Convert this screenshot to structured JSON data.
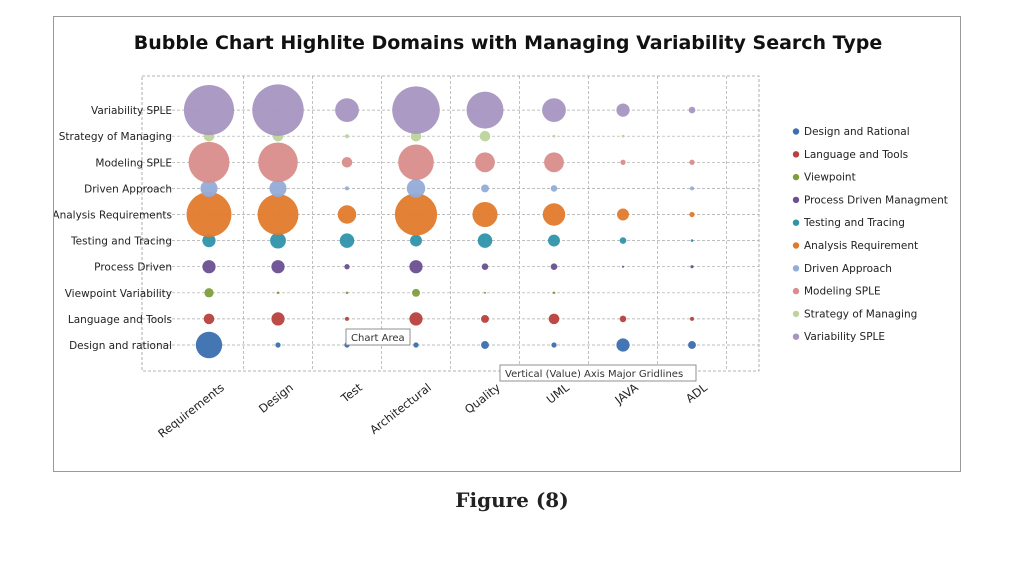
{
  "chart_data": {
    "type": "bubble",
    "title": "Bubble Chart Highlite Domains with Managing Variability Search Type",
    "categories": [
      "Requirements",
      "Design",
      "Test",
      "Architectural",
      "Quality",
      "UML",
      "JAVA",
      "ADL"
    ],
    "y_categories": [
      "Design and rational",
      "Language and Tools",
      "Viewpoint Variability",
      "Process Driven",
      "Testing and Tracing",
      "Analysis Requirements",
      "Driven Approach",
      "Modeling SPLE",
      "Strategy of Managing",
      "Variability SPLE"
    ],
    "grid": true,
    "legend_position": "right",
    "series": [
      {
        "name": "Design and Rational",
        "color": "#3b6fb0",
        "sizes": [
          10,
          2,
          2,
          2,
          3,
          2,
          5,
          3
        ]
      },
      {
        "name": "Language and Tools",
        "color": "#b8403d",
        "sizes": [
          4,
          5,
          1.5,
          5,
          3,
          4,
          2.5,
          1.5
        ]
      },
      {
        "name": "Viewpoint",
        "color": "#7f9e3e",
        "sizes": [
          3.5,
          1,
          1,
          3,
          0.8,
          1,
          0,
          0
        ]
      },
      {
        "name": "Process Driven Managment",
        "color": "#6b4f91",
        "sizes": [
          5,
          5,
          2,
          5,
          2.5,
          2.5,
          0.8,
          1.2
        ]
      },
      {
        "name": "Testing and Tracing",
        "color": "#2f93ab",
        "sizes": [
          5,
          6,
          5.5,
          4.5,
          5.5,
          4.5,
          2.5,
          1
        ]
      },
      {
        "name": "Analysis Requirement",
        "color": "#e27a2c",
        "sizes": [
          17,
          15.5,
          7,
          16,
          9.5,
          8.5,
          4.5,
          2
        ]
      },
      {
        "name": "Driven Approach",
        "color": "#93acd8",
        "sizes": [
          6.5,
          6.5,
          1.5,
          7,
          3,
          2.5,
          0.4,
          1.5
        ]
      },
      {
        "name": "Modeling SPLE",
        "color": "#d98d8c",
        "sizes": [
          15.5,
          15,
          4,
          13.5,
          7.5,
          7.5,
          2,
          2
        ]
      },
      {
        "name": "Strategy of Managing",
        "color": "#bcd49b",
        "sizes": [
          4,
          4,
          1.5,
          4,
          4,
          1,
          1,
          0.3
        ]
      },
      {
        "name": "Variability SPLE",
        "color": "#a795c0",
        "sizes": [
          19,
          19.5,
          9,
          18,
          14,
          9,
          5,
          2.5
        ]
      }
    ]
  },
  "tooltips": {
    "chart_area": "Chart Area",
    "gridlines": "Vertical (Value) Axis Major Gridlines"
  },
  "caption": "Figure (8)"
}
